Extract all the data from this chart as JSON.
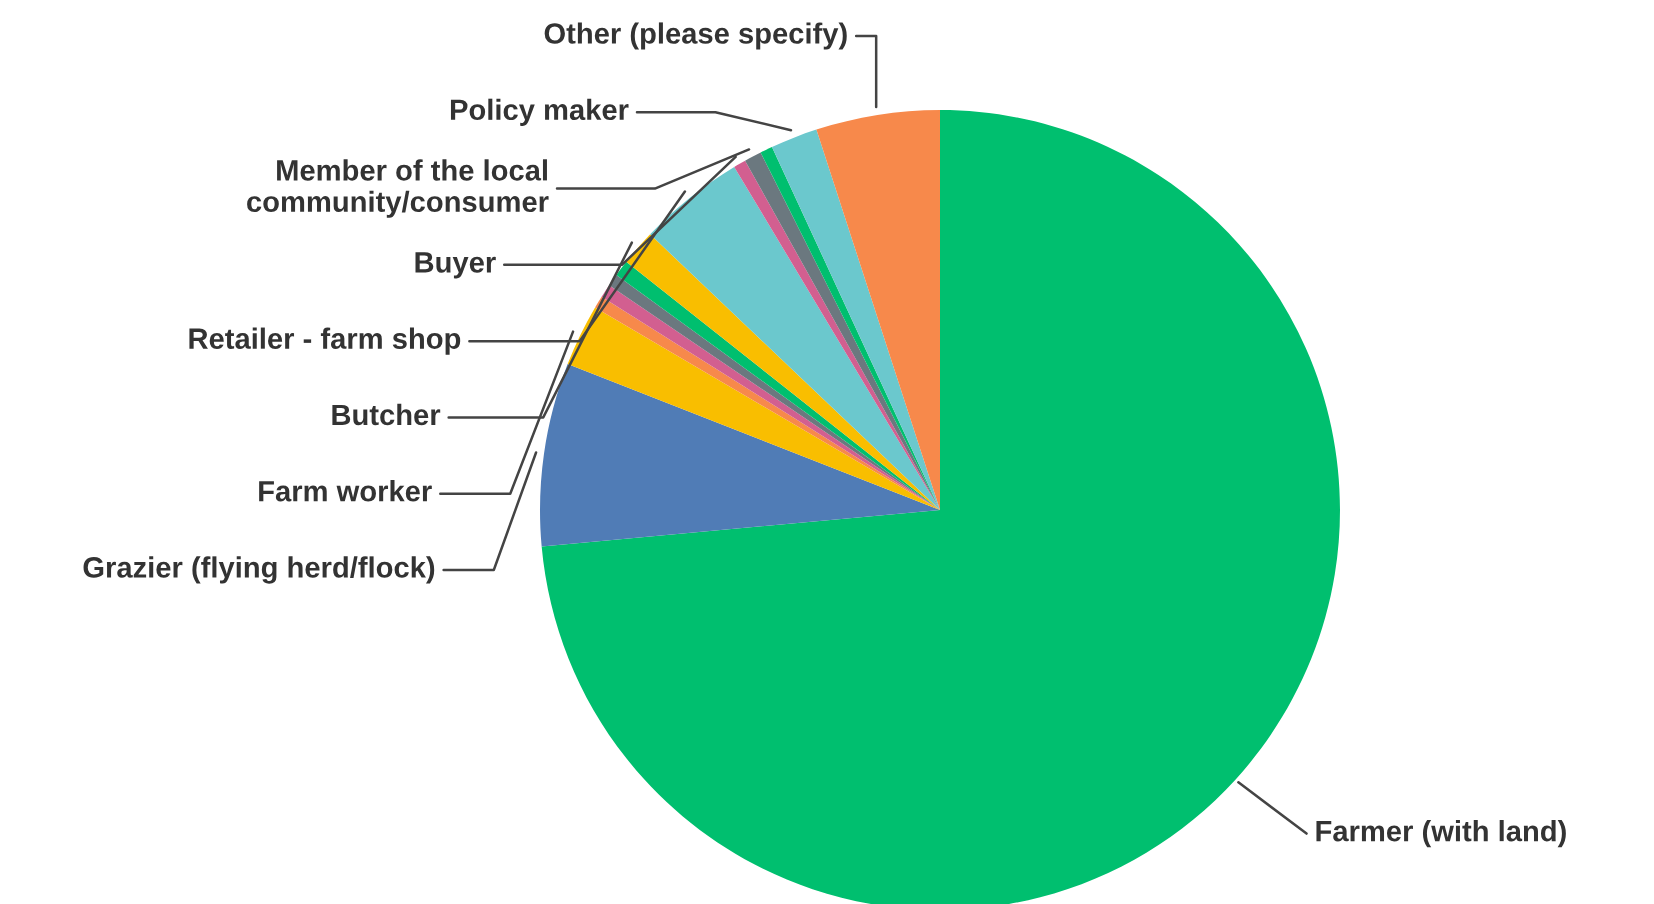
{
  "chart_data": {
    "type": "pie",
    "categories": [
      "Farmer (with land)",
      "Grazier (flying herd/flock)",
      "Farm worker",
      null,
      null,
      null,
      null,
      "Butcher",
      "Retailer - farm shop",
      "Buyer",
      "Member of the local community/consumer",
      null,
      "Policy maker",
      "Other (please specify)"
    ],
    "values": [
      73.55,
      7.4,
      2.5,
      0.5,
      0.55,
      0.5,
      0.65,
      1.45,
      4.3,
      0.5,
      0.7,
      0.5,
      1.9,
      5.0
    ],
    "colors": [
      "#00bf6f",
      "#507cb6",
      "#f9be00",
      "#f7894b",
      "#d25f90",
      "#6b787f",
      "#00bf6f",
      "#f9be00",
      "#6bc8cd",
      "#d25f90",
      "#6b787f",
      "#00bf6f",
      "#6bc8cd",
      "#f7894b"
    ]
  }
}
